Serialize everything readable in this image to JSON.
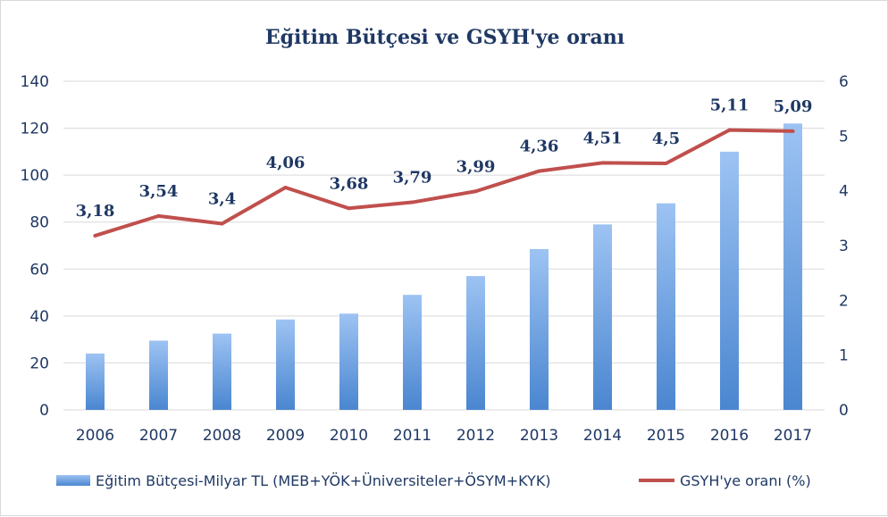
{
  "chart_data": {
    "type": "bar",
    "title": "Eğitim  Bütçesi ve GSYH'ye oranı",
    "categories": [
      "2006",
      "2007",
      "2008",
      "2009",
      "2010",
      "2011",
      "2012",
      "2013",
      "2014",
      "2015",
      "2016",
      "2017"
    ],
    "series": [
      {
        "name": "Eğitim Bütçesi-Milyar TL (MEB+YÖK+Üniversiteler+ÖSYM+KYK)",
        "type": "bar",
        "axis": "left",
        "values": [
          24,
          29.5,
          32.5,
          38.5,
          41,
          49,
          57,
          68.5,
          79,
          88,
          110,
          122
        ]
      },
      {
        "name": "GSYH'ye oranı (%)",
        "type": "line",
        "axis": "right",
        "values": [
          3.18,
          3.54,
          3.4,
          4.06,
          3.68,
          3.79,
          3.99,
          4.36,
          4.51,
          4.5,
          5.11,
          5.09
        ],
        "data_labels": [
          "3,18",
          "3,54",
          "3,4",
          "4,06",
          "3,68",
          "3,79",
          "3,99",
          "4,36",
          "4,51",
          "4,5",
          "5,11",
          "5,09"
        ]
      }
    ],
    "y_left": {
      "ylim": [
        0,
        140
      ],
      "ticks": [
        "0",
        "20",
        "40",
        "60",
        "80",
        "100",
        "120",
        "140"
      ]
    },
    "y_right": {
      "ylim": [
        0,
        6
      ],
      "ticks": [
        "0",
        "1",
        "2",
        "3",
        "4",
        "5",
        "6"
      ]
    },
    "xlabel": "",
    "ylabel": "",
    "grid": true,
    "legend_position": "bottom",
    "colors": {
      "bar_top": "#9dc3f3",
      "bar_bottom": "#4a86d0",
      "line": "#c0504d",
      "text": "#1f3864",
      "grid": "#d9d9d9"
    }
  }
}
